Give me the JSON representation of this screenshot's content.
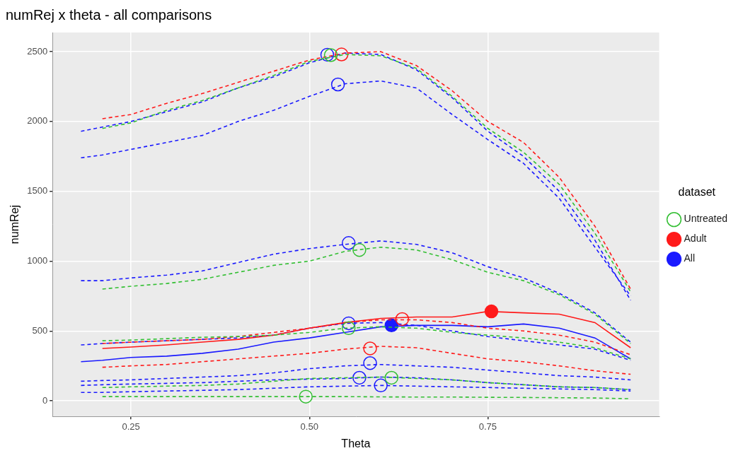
{
  "chart_data": {
    "type": "line",
    "title": "numRej x theta - all comparisons",
    "x_label": "Theta",
    "y_label": "numRej",
    "legend_title": "dataset",
    "legend": "right",
    "grid": true,
    "xlim": [
      0.14,
      0.99
    ],
    "xticks": [
      0.25,
      {
        "value": 0.5,
        "label": "0.50"
      },
      0.75
    ],
    "ylim": [
      -112,
      2637
    ],
    "yticks": [
      0,
      500,
      1000,
      1500,
      2000,
      2500
    ],
    "x": [
      0.18,
      0.21,
      0.25,
      0.3,
      0.35,
      0.4,
      0.45,
      0.5,
      0.55,
      0.6,
      0.65,
      0.7,
      0.75,
      0.8,
      0.85,
      0.9,
      0.95
    ],
    "series": [
      {
        "name": "Untreated",
        "color": "#33bf33",
        "line_style": "dashed",
        "marker": "open_circle",
        "peak": {
          "x": 0.53,
          "y": 2475
        },
        "values": [
          null,
          1950,
          1990,
          2080,
          2150,
          2240,
          2330,
          2430,
          2480,
          2470,
          2380,
          2180,
          1950,
          1780,
          1550,
          1200,
          780
        ]
      },
      {
        "name": "Untreated",
        "color": "#33bf33",
        "line_style": "dashed",
        "marker": "open_circle",
        "peak": {
          "x": 0.57,
          "y": 1080
        },
        "values": [
          null,
          800,
          820,
          840,
          870,
          920,
          970,
          1000,
          1070,
          1100,
          1080,
          1010,
          920,
          860,
          760,
          620,
          410
        ]
      },
      {
        "name": "Untreated",
        "color": "#33bf33",
        "line_style": "dashed",
        "marker": "open_circle",
        "peak": {
          "x": 0.555,
          "y": 520
        },
        "values": [
          null,
          430,
          435,
          445,
          455,
          460,
          470,
          490,
          520,
          530,
          520,
          490,
          470,
          450,
          420,
          380,
          300
        ]
      },
      {
        "name": "Untreated",
        "color": "#33bf33",
        "line_style": "dashed",
        "marker": "open_circle",
        "peak": {
          "x": 0.615,
          "y": 165
        },
        "values": [
          null,
          95,
          100,
          105,
          110,
          120,
          140,
          160,
          165,
          170,
          160,
          150,
          130,
          115,
          100,
          95,
          80
        ]
      },
      {
        "name": "Untreated",
        "color": "#33bf33",
        "line_style": "dashed",
        "marker": "open_circle",
        "peak": {
          "x": 0.495,
          "y": 30
        },
        "values": [
          null,
          30,
          30,
          30,
          30,
          30,
          30,
          30,
          30,
          28,
          27,
          27,
          25,
          24,
          22,
          20,
          15
        ]
      },
      {
        "name": "Adult",
        "color": "#ff1a1a",
        "line_style": "dashed",
        "marker": "open_circle",
        "peak": {
          "x": 0.545,
          "y": 2480
        },
        "values": [
          null,
          2020,
          2050,
          2130,
          2200,
          2280,
          2360,
          2440,
          2490,
          2500,
          2400,
          2220,
          2000,
          1850,
          1600,
          1250,
          800
        ]
      },
      {
        "name": "Adult",
        "color": "#ff1a1a",
        "line_style": "solid",
        "marker": "filled_circle",
        "peak": {
          "x": 0.755,
          "y": 640
        },
        "values": [
          null,
          375,
          385,
          400,
          420,
          440,
          470,
          520,
          560,
          590,
          600,
          600,
          640,
          630,
          620,
          560,
          380
        ]
      },
      {
        "name": "Adult",
        "color": "#ff1a1a",
        "line_style": "dashed",
        "marker": "open_circle",
        "peak": {
          "x": 0.63,
          "y": 585
        },
        "values": [
          null,
          410,
          420,
          430,
          440,
          460,
          490,
          520,
          560,
          580,
          580,
          560,
          520,
          500,
          470,
          420,
          330
        ]
      },
      {
        "name": "Adult",
        "color": "#ff1a1a",
        "line_style": "dashed",
        "marker": "open_circle",
        "peak": {
          "x": 0.585,
          "y": 375
        },
        "values": [
          null,
          240,
          250,
          260,
          280,
          300,
          320,
          340,
          370,
          390,
          380,
          340,
          300,
          280,
          250,
          215,
          190
        ]
      },
      {
        "name": "All",
        "color": "#1a1aff",
        "line_style": "dashed",
        "marker": "open_circle",
        "peak": {
          "x": 0.525,
          "y": 2478
        },
        "values": [
          1930,
          1960,
          2000,
          2070,
          2140,
          2240,
          2320,
          2420,
          2490,
          2480,
          2370,
          2170,
          1930,
          1750,
          1500,
          1150,
          720
        ]
      },
      {
        "name": "All",
        "color": "#1a1aff",
        "line_style": "dashed",
        "marker": "open_circle",
        "peak": {
          "x": 0.54,
          "y": 2265
        },
        "values": [
          1740,
          1760,
          1800,
          1850,
          1900,
          2000,
          2080,
          2180,
          2270,
          2290,
          2240,
          2050,
          1870,
          1700,
          1450,
          1100,
          750
        ]
      },
      {
        "name": "All",
        "color": "#1a1aff",
        "line_style": "dashed",
        "marker": "open_circle",
        "peak": {
          "x": 0.555,
          "y": 1130
        },
        "values": [
          860,
          860,
          880,
          900,
          930,
          990,
          1050,
          1090,
          1120,
          1145,
          1120,
          1060,
          960,
          880,
          770,
          630,
          420
        ]
      },
      {
        "name": "All",
        "color": "#1a1aff",
        "line_style": "solid",
        "marker": "filled_circle",
        "peak": {
          "x": 0.615,
          "y": 540
        },
        "values": [
          280,
          290,
          310,
          320,
          340,
          370,
          420,
          450,
          490,
          530,
          540,
          540,
          530,
          550,
          520,
          450,
          300
        ]
      },
      {
        "name": "All",
        "color": "#1a1aff",
        "line_style": "dashed",
        "marker": "open_circle",
        "peak": {
          "x": 0.555,
          "y": 555
        },
        "values": [
          400,
          410,
          420,
          430,
          440,
          450,
          470,
          520,
          555,
          560,
          540,
          500,
          460,
          430,
          400,
          370,
          290
        ]
      },
      {
        "name": "All",
        "color": "#1a1aff",
        "line_style": "dashed",
        "marker": "open_circle",
        "peak": {
          "x": 0.585,
          "y": 270
        },
        "values": [
          140,
          145,
          150,
          160,
          170,
          180,
          200,
          230,
          250,
          260,
          250,
          240,
          220,
          200,
          180,
          170,
          150
        ]
      },
      {
        "name": "All",
        "color": "#1a1aff",
        "line_style": "dashed",
        "marker": "open_circle",
        "peak": {
          "x": 0.57,
          "y": 165
        },
        "values": [
          110,
          115,
          120,
          125,
          130,
          140,
          150,
          155,
          160,
          170,
          165,
          150,
          130,
          115,
          100,
          95,
          80
        ]
      },
      {
        "name": "All",
        "color": "#1a1aff",
        "line_style": "dashed",
        "marker": "open_circle",
        "peak": {
          "x": 0.6,
          "y": 110
        },
        "values": [
          60,
          60,
          65,
          70,
          75,
          80,
          90,
          100,
          105,
          110,
          105,
          100,
          95,
          90,
          85,
          80,
          70
        ]
      }
    ]
  }
}
